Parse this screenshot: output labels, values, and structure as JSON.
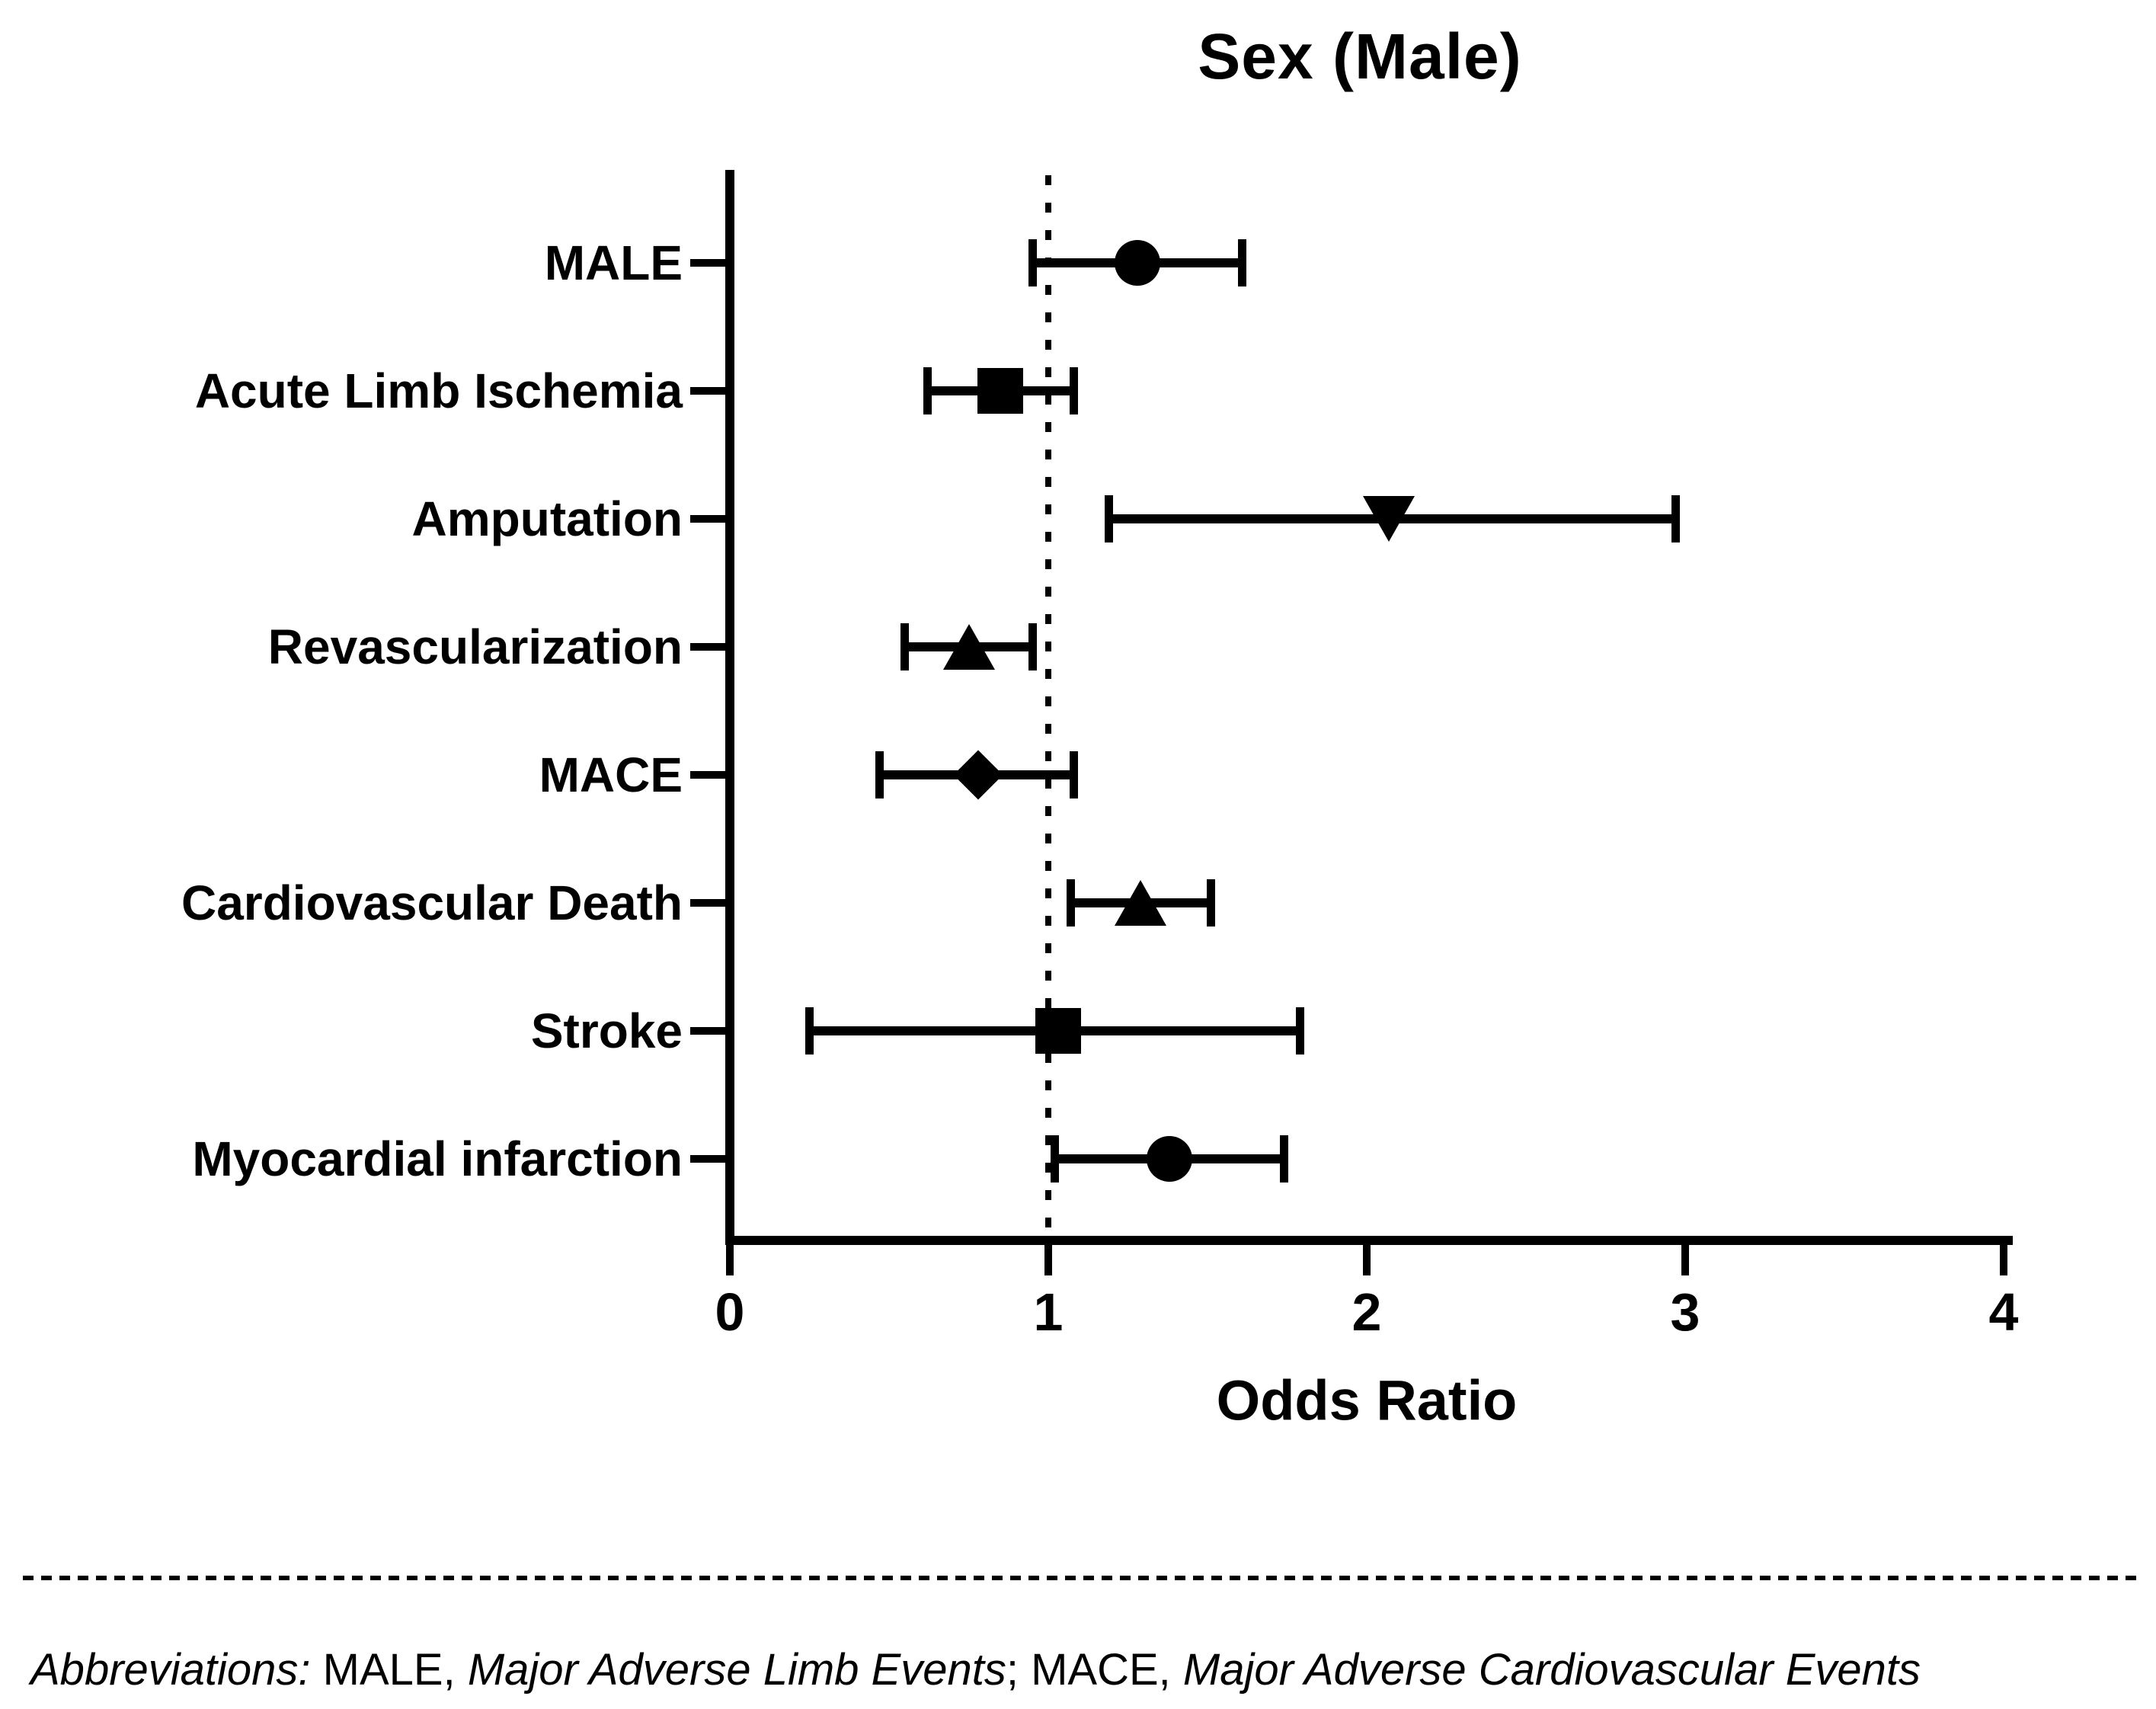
{
  "figure": {
    "title": "Sex (Male)",
    "background": "#ffffff",
    "ink_color": "#000000"
  },
  "chart_data": {
    "type": "scatter",
    "subtype": "forest_plot",
    "title": "Sex (Male)",
    "xlabel": "Odds Ratio",
    "ylabel": "",
    "xlim": [
      0,
      4
    ],
    "x_ticks": [
      "0",
      "1",
      "2",
      "3",
      "4"
    ],
    "grid": false,
    "legend": "none",
    "reference_line_x": 1,
    "reference_line_style": "dotted",
    "categories": [
      "MALE",
      "Acute Limb Ischemia",
      "Amputation",
      "Revascularization",
      "MACE",
      "Cardiovascular Death",
      "Stroke",
      "Myocardial infarction"
    ],
    "rows": [
      {
        "label": "MALE",
        "odds_ratio": 1.28,
        "ci_low": 0.95,
        "ci_high": 1.61,
        "marker": "circle"
      },
      {
        "label": "Acute Limb Ischemia",
        "odds_ratio": 0.85,
        "ci_low": 0.62,
        "ci_high": 1.08,
        "marker": "square"
      },
      {
        "label": "Amputation",
        "odds_ratio": 2.07,
        "ci_low": 1.19,
        "ci_high": 2.97,
        "marker": "triangle-down"
      },
      {
        "label": "Revascularization",
        "odds_ratio": 0.75,
        "ci_low": 0.55,
        "ci_high": 0.95,
        "marker": "triangle-up"
      },
      {
        "label": "MACE",
        "odds_ratio": 0.78,
        "ci_low": 0.47,
        "ci_high": 1.08,
        "marker": "diamond"
      },
      {
        "label": "Cardiovascular Death",
        "odds_ratio": 1.29,
        "ci_low": 1.07,
        "ci_high": 1.51,
        "marker": "triangle-up"
      },
      {
        "label": "Stroke",
        "odds_ratio": 1.03,
        "ci_low": 0.25,
        "ci_high": 1.79,
        "marker": "square"
      },
      {
        "label": "Myocardial infarction",
        "odds_ratio": 1.38,
        "ci_low": 1.02,
        "ci_high": 1.74,
        "marker": "circle"
      }
    ]
  },
  "footnote": {
    "segments": [
      {
        "text": "Abbreviations:",
        "italic": true
      },
      {
        "text": " MALE, ",
        "italic": false
      },
      {
        "text": "Major Adverse Limb Events",
        "italic": true
      },
      {
        "text": "; MACE, ",
        "italic": false
      },
      {
        "text": "Major Adverse Cardiovascular Events",
        "italic": true
      }
    ]
  }
}
